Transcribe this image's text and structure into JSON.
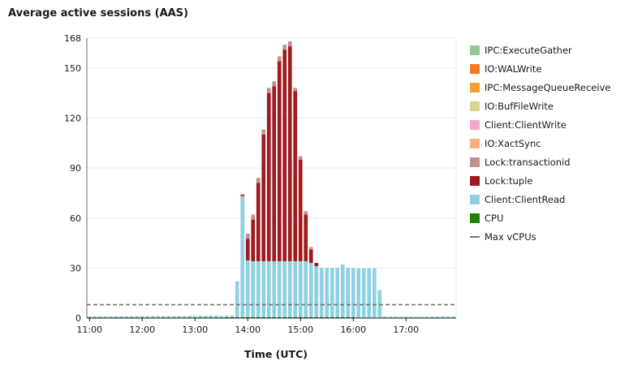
{
  "chart_data": {
    "type": "bar",
    "stacked": true,
    "title": "Average active sessions (AAS)",
    "xlabel": "Time (UTC)",
    "ylabel": "",
    "ylim": [
      0,
      168
    ],
    "yticks": [
      0,
      30,
      60,
      90,
      120,
      150,
      168
    ],
    "xlim": [
      "10:57",
      "17:57"
    ],
    "xticks": [
      "11:00",
      "12:00",
      "13:00",
      "14:00",
      "15:00",
      "16:00",
      "17:00"
    ],
    "grid": true,
    "legend_position": "right",
    "x": [
      "10:57",
      "11:03",
      "11:09",
      "11:15",
      "11:21",
      "11:27",
      "11:33",
      "11:39",
      "11:45",
      "11:51",
      "11:57",
      "12:03",
      "12:09",
      "12:15",
      "12:21",
      "12:27",
      "12:33",
      "12:39",
      "12:45",
      "12:51",
      "12:57",
      "13:03",
      "13:09",
      "13:15",
      "13:21",
      "13:27",
      "13:33",
      "13:39",
      "13:45",
      "13:51",
      "13:57",
      "14:03",
      "14:09",
      "14:15",
      "14:21",
      "14:27",
      "14:33",
      "14:39",
      "14:45",
      "14:51",
      "14:57",
      "15:03",
      "15:09",
      "15:15",
      "15:21",
      "15:27",
      "15:33",
      "15:39",
      "15:45",
      "15:51",
      "15:57",
      "16:03",
      "16:09",
      "16:15",
      "16:21",
      "16:27",
      "16:33",
      "16:39",
      "16:45",
      "16:51",
      "16:57",
      "17:03",
      "17:09",
      "17:15",
      "17:21",
      "17:27",
      "17:33",
      "17:39",
      "17:45",
      "17:51"
    ],
    "series": [
      {
        "name": "CPU",
        "color": "#1d8102",
        "values": [
          0.4,
          0.4,
          0.4,
          0.4,
          0.4,
          0.4,
          0.4,
          0.4,
          0.4,
          0.4,
          0.4,
          0.4,
          0.4,
          0.4,
          0.4,
          0.4,
          0.4,
          0.4,
          0.4,
          0.4,
          0.4,
          0.4,
          0.4,
          0.4,
          0.4,
          0.4,
          0.5,
          0.6,
          0.6,
          0.6,
          0.6,
          0.6,
          0.6,
          0.6,
          0.6,
          0.6,
          0.6,
          0.6,
          0.6,
          0.6,
          0.6,
          0.6,
          0.6,
          0.6,
          0.6,
          0.6,
          0.6,
          0.6,
          0.6,
          0.6,
          0.5,
          0.3,
          0.3,
          0.3,
          0.3,
          0.3,
          0.3,
          0.3,
          0.3,
          0.3,
          0.3,
          0.3,
          0.3,
          0.3,
          0.3,
          0.3,
          0.3,
          0.3,
          0.3,
          0.3
        ]
      },
      {
        "name": "Client:ClientRead",
        "color": "#8fd1e0",
        "values": [
          0.6,
          0.6,
          0.6,
          0.6,
          0.6,
          0.7,
          0.7,
          0.7,
          0.7,
          0.7,
          0.7,
          0.8,
          0.8,
          0.8,
          0.8,
          0.8,
          0.8,
          0.8,
          0.8,
          0.9,
          0.9,
          1.1,
          1.1,
          1.1,
          1.1,
          0.9,
          0.9,
          0.9,
          21.5,
          72.5,
          34,
          33.5,
          33.5,
          33.5,
          33.5,
          33.5,
          33.5,
          33.5,
          33.5,
          33.5,
          33.5,
          33.5,
          32.5,
          30.5,
          29.5,
          29.5,
          29.5,
          29.5,
          31.5,
          29.5,
          29.5,
          29.5,
          29.5,
          29.5,
          29.5,
          16.5,
          0.7,
          0.6,
          0.5,
          0.5,
          0.5,
          0.5,
          0.5,
          0.5,
          0.6,
          0.6,
          0.7,
          0.7,
          0.7,
          0.7
        ]
      },
      {
        "name": "Lock:tuple",
        "color": "#9e1b20",
        "values": [
          0,
          0,
          0,
          0,
          0,
          0,
          0,
          0,
          0,
          0,
          0,
          0,
          0,
          0,
          0,
          0,
          0,
          0,
          0,
          0,
          0,
          0,
          0,
          0,
          0,
          0,
          0,
          0,
          0,
          0.8,
          13,
          25,
          47,
          76,
          101,
          105,
          120,
          127,
          129,
          102,
          61,
          28,
          8,
          2,
          0,
          0,
          0,
          0,
          0,
          0,
          0,
          0,
          0,
          0,
          0,
          0,
          0,
          0,
          0,
          0,
          0,
          0,
          0,
          0,
          0,
          0,
          0,
          0,
          0,
          0
        ]
      },
      {
        "name": "Lock:transactionid",
        "color": "#c0918c",
        "values": [
          0,
          0,
          0,
          0,
          0,
          0,
          0,
          0,
          0,
          0,
          0,
          0,
          0,
          0,
          0,
          0,
          0,
          0,
          0,
          0,
          0,
          0,
          0,
          0,
          0,
          0,
          0,
          0,
          0,
          0.4,
          3,
          3,
          3,
          3,
          3,
          3,
          3,
          3,
          3,
          2,
          2,
          2,
          1.5,
          0,
          0,
          0,
          0,
          0,
          0,
          0,
          0,
          0,
          0,
          0,
          0,
          0,
          0,
          0,
          0,
          0,
          0,
          0,
          0,
          0,
          0,
          0,
          0,
          0,
          0,
          0
        ]
      }
    ],
    "legend_only_series": [
      {
        "name": "IPC:ExecuteGather",
        "color": "#93c993"
      },
      {
        "name": "IO:WALWrite",
        "color": "#f47b24"
      },
      {
        "name": "IPC:MessageQueueReceive",
        "color": "#f0a132"
      },
      {
        "name": "IO:BufFileWrite",
        "color": "#dbd48f"
      },
      {
        "name": "Client:ClientWrite",
        "color": "#f7a8c9"
      },
      {
        "name": "IO:XactSync",
        "color": "#f5b07d"
      }
    ],
    "reference_line": {
      "name": "Max vCPUs",
      "value": 8,
      "color": "#757575",
      "style": "dashed"
    }
  },
  "legend": [
    {
      "label": "IPC:ExecuteGather",
      "color": "#93c993"
    },
    {
      "label": "IO:WALWrite",
      "color": "#f47b24"
    },
    {
      "label": "IPC:MessageQueueReceive",
      "color": "#f0a132"
    },
    {
      "label": "IO:BufFileWrite",
      "color": "#dbd48f"
    },
    {
      "label": "Client:ClientWrite",
      "color": "#f7a8c9"
    },
    {
      "label": "IO:XactSync",
      "color": "#f5b07d"
    },
    {
      "label": "Lock:transactionid",
      "color": "#c0918c"
    },
    {
      "label": "Lock:tuple",
      "color": "#9e1b20"
    },
    {
      "label": "Client:ClientRead",
      "color": "#8fd1e0"
    },
    {
      "label": "CPU",
      "color": "#1d8102"
    },
    {
      "label": "Max vCPUs",
      "color": "#757575",
      "dashed": true
    }
  ]
}
